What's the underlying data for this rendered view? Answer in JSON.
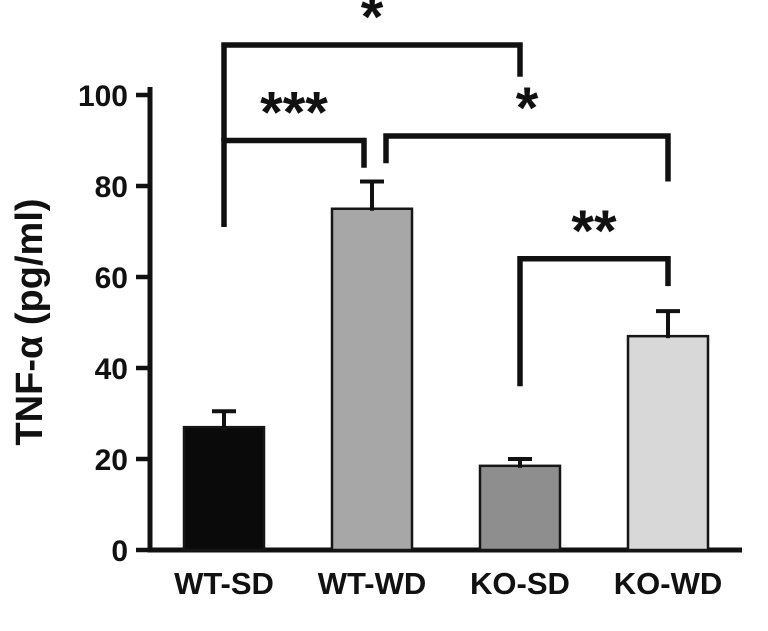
{
  "chart_data": {
    "type": "bar",
    "title": "",
    "ylabel": "TNF-α (pg/ml)",
    "xlabel": "",
    "categories": [
      "WT-SD",
      "WT-WD",
      "KO-SD",
      "KO-WD"
    ],
    "values": [
      27,
      75,
      18.5,
      47
    ],
    "errors": [
      3.5,
      6,
      1.5,
      5.5
    ],
    "bar_colors": [
      "#0a0a0a",
      "#a7a7a7",
      "#8e8e8e",
      "#d8d8d8"
    ],
    "bar_edge_color": "#161616",
    "ylim": [
      0,
      100
    ],
    "yticks": [
      0,
      20,
      40,
      60,
      80,
      100
    ],
    "grid": false,
    "legend": false,
    "error_bars": "upper-capped",
    "significance": [
      {
        "pair": "WT-SD vs WT-WD",
        "from": 0,
        "to": 1,
        "label": "***",
        "bar_y": 90,
        "left_drop_to": 71,
        "right_drop_to": 84,
        "right_offset": -8
      },
      {
        "pair": "WT-SD vs KO-SD",
        "from": 0,
        "to": 2,
        "label": "*",
        "bar_y": 111,
        "left_drop_to": 90,
        "right_drop_to": 104
      },
      {
        "pair": "WT-WD vs KO-WD",
        "from": 1,
        "to": 3,
        "label": "*",
        "bar_y": 91,
        "left_drop_to": 85,
        "right_drop_to": 81,
        "left_offset": 14
      },
      {
        "pair": "KO-SD vs KO-WD",
        "from": 2,
        "to": 3,
        "label": "**",
        "bar_y": 64,
        "left_drop_to": 36,
        "right_drop_to": 58
      }
    ]
  },
  "colors": {
    "axis": "#111111",
    "text": "#111111",
    "background": "#ffffff"
  }
}
